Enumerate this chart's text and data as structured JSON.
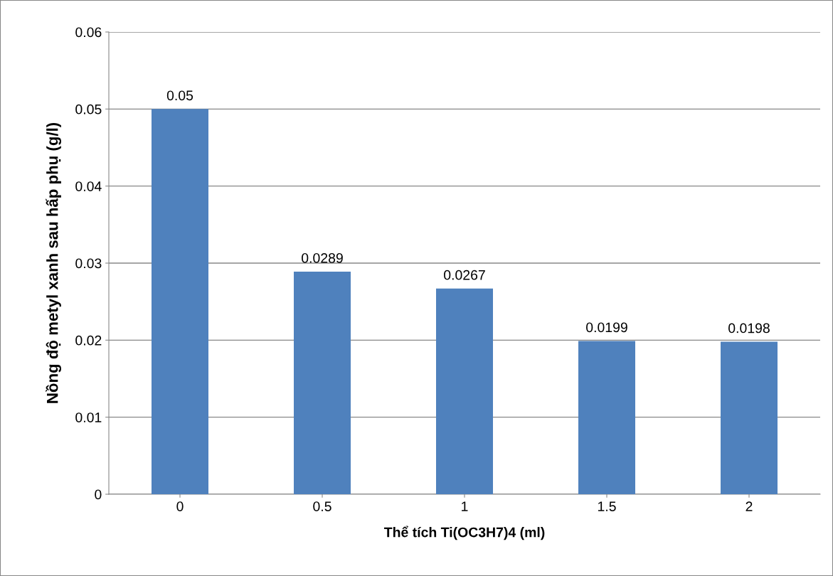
{
  "chart_data": {
    "type": "bar",
    "xlabel": "Thể tích Ti(OC3H7)4 (ml)",
    "ylabel": "Nồng độ metyl xanh sau hấp phụ (g/l)",
    "categories": [
      "0",
      "0.5",
      "1",
      "1.5",
      "2"
    ],
    "values": [
      0.05,
      0.0289,
      0.0267,
      0.0199,
      0.0198
    ],
    "color": "#4f81bd",
    "ylim": [
      0,
      0.06
    ],
    "yticks": [
      0,
      0.01,
      0.02,
      0.03,
      0.04,
      0.05,
      0.06
    ],
    "grid": "y",
    "data_labels": true
  }
}
